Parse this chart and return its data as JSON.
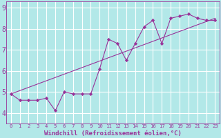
{
  "xlabel": "Windchill (Refroidissement éolien,°C)",
  "bg_color": "#b2e8e8",
  "grid_color": "#c8e8e8",
  "line_color": "#993399",
  "xlim": [
    -0.5,
    23.5
  ],
  "ylim": [
    3.5,
    9.3
  ],
  "xticks": [
    0,
    1,
    2,
    3,
    4,
    5,
    6,
    7,
    8,
    9,
    10,
    11,
    12,
    13,
    14,
    15,
    16,
    17,
    18,
    19,
    20,
    21,
    22,
    23
  ],
  "yticks": [
    4,
    5,
    6,
    7,
    8,
    9
  ],
  "series1_x": [
    0,
    1,
    2,
    3,
    4,
    5,
    6,
    7,
    8,
    9,
    10,
    11,
    12,
    13,
    14,
    15,
    16,
    17,
    18,
    19,
    20,
    21,
    22,
    23
  ],
  "series1_y": [
    4.9,
    4.6,
    4.6,
    4.6,
    4.7,
    4.1,
    5.0,
    4.9,
    4.9,
    4.9,
    6.1,
    7.5,
    7.3,
    6.5,
    7.3,
    8.1,
    8.4,
    7.3,
    8.5,
    8.6,
    8.7,
    8.5,
    8.4,
    8.4
  ],
  "trend_x": [
    0,
    23
  ],
  "trend_y": [
    4.9,
    8.5
  ],
  "font_size_xlabel": 6.5,
  "font_size_ytick": 7.0,
  "font_size_xtick": 5.2,
  "grid_lw": 0.8,
  "line_lw": 0.8,
  "marker_size": 2.2
}
